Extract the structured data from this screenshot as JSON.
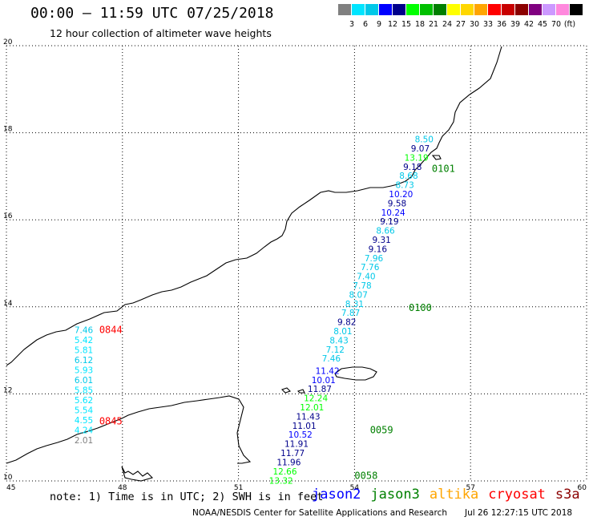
{
  "header": {
    "title": "00:00 – 11:59 UTC 07/25/2018",
    "subtitle": "12 hour collection of altimeter wave heights"
  },
  "color_scale": {
    "colors": [
      "#808080",
      "#00e5ff",
      "#00c8e8",
      "#0000ff",
      "#00008b",
      "#00ff00",
      "#00c000",
      "#007f00",
      "#ffff00",
      "#ffd700",
      "#ffa500",
      "#ff0000",
      "#c80000",
      "#8b0000",
      "#800080",
      "#cc99ff",
      "#ff88dd",
      "#000000"
    ],
    "labels": [
      "3",
      "6",
      "9",
      "12",
      "15",
      "18",
      "21",
      "24",
      "27",
      "30",
      "33",
      "36",
      "39",
      "42",
      "45",
      "70",
      "(ft)"
    ]
  },
  "map": {
    "x_ticks": [
      "45",
      "48",
      "51",
      "54",
      "57",
      "60"
    ],
    "y_ticks": [
      "20",
      "18",
      "16",
      "14",
      "12",
      "10"
    ]
  },
  "chart_data": {
    "type": "scatter",
    "x_label": "",
    "y_label": "",
    "xlim": [
      45,
      60
    ],
    "ylim": [
      10,
      20
    ],
    "x_ticks": [
      45,
      48,
      51,
      54,
      57,
      60
    ],
    "y_ticks": [
      10,
      12,
      14,
      16,
      18,
      20
    ],
    "grid": true,
    "passes": [
      {
        "label": "0844",
        "label_color": "#ff0000",
        "anchor": [
          47.4,
          13.4
        ]
      },
      {
        "label": "0845",
        "label_color": "#ff0000",
        "anchor": [
          47.4,
          11.3
        ]
      },
      {
        "label": "0101",
        "label_color": "#008000",
        "anchor": [
          56.0,
          17.1
        ]
      },
      {
        "label": "0100",
        "label_color": "#008000",
        "anchor": [
          55.4,
          13.9
        ]
      },
      {
        "label": "0059",
        "label_color": "#008000",
        "anchor": [
          54.4,
          11.1
        ]
      },
      {
        "label": "0058",
        "label_color": "#008000",
        "anchor": [
          54.0,
          10.05
        ]
      }
    ],
    "points": [
      {
        "x": 47.0,
        "y": 13.4,
        "v": "7.46",
        "c": "#00c8e8"
      },
      {
        "x": 47.0,
        "y": 13.17,
        "v": "5.42",
        "c": "#00e5ff"
      },
      {
        "x": 47.0,
        "y": 12.94,
        "v": "5.81",
        "c": "#00e5ff"
      },
      {
        "x": 47.0,
        "y": 12.71,
        "v": "6.12",
        "c": "#00c8e8"
      },
      {
        "x": 47.0,
        "y": 12.48,
        "v": "5.93",
        "c": "#00e5ff"
      },
      {
        "x": 47.0,
        "y": 12.25,
        "v": "6.01",
        "c": "#00c8e8"
      },
      {
        "x": 47.0,
        "y": 12.02,
        "v": "5.85",
        "c": "#00e5ff"
      },
      {
        "x": 47.0,
        "y": 11.79,
        "v": "5.62",
        "c": "#00e5ff"
      },
      {
        "x": 47.0,
        "y": 11.56,
        "v": "5.54",
        "c": "#00e5ff"
      },
      {
        "x": 47.0,
        "y": 11.33,
        "v": "4.55",
        "c": "#00e5ff"
      },
      {
        "x": 47.0,
        "y": 11.1,
        "v": "4.24",
        "c": "#00e5ff"
      },
      {
        "x": 47.0,
        "y": 10.87,
        "v": "2.01",
        "c": "#808080"
      },
      {
        "x": 55.8,
        "y": 17.78,
        "v": "8.50",
        "c": "#00c8e8"
      },
      {
        "x": 55.7,
        "y": 17.57,
        "v": "9.07",
        "c": "#00008b"
      },
      {
        "x": 55.6,
        "y": 17.36,
        "v": "13.19",
        "c": "#00ff00"
      },
      {
        "x": 55.5,
        "y": 17.15,
        "v": "9.18",
        "c": "#00008b"
      },
      {
        "x": 55.4,
        "y": 16.94,
        "v": "8.68",
        "c": "#00c8e8"
      },
      {
        "x": 55.3,
        "y": 16.73,
        "v": "8.73",
        "c": "#00c8e8"
      },
      {
        "x": 55.2,
        "y": 16.52,
        "v": "10.20",
        "c": "#0000ff"
      },
      {
        "x": 55.1,
        "y": 16.31,
        "v": "9.58",
        "c": "#00008b"
      },
      {
        "x": 55.0,
        "y": 16.1,
        "v": "10.24",
        "c": "#0000ff"
      },
      {
        "x": 54.9,
        "y": 15.89,
        "v": "9.19",
        "c": "#00008b"
      },
      {
        "x": 54.8,
        "y": 15.68,
        "v": "8.66",
        "c": "#00c8e8"
      },
      {
        "x": 54.7,
        "y": 15.47,
        "v": "9.31",
        "c": "#00008b"
      },
      {
        "x": 54.6,
        "y": 15.26,
        "v": "9.16",
        "c": "#00008b"
      },
      {
        "x": 54.5,
        "y": 15.05,
        "v": "7.96",
        "c": "#00c8e8"
      },
      {
        "x": 54.4,
        "y": 14.84,
        "v": "7.76",
        "c": "#00c8e8"
      },
      {
        "x": 54.3,
        "y": 14.63,
        "v": "7.40",
        "c": "#00c8e8"
      },
      {
        "x": 54.2,
        "y": 14.42,
        "v": "7.78",
        "c": "#00c8e8"
      },
      {
        "x": 54.1,
        "y": 14.21,
        "v": "8.07",
        "c": "#00c8e8"
      },
      {
        "x": 54.0,
        "y": 14.0,
        "v": "8.31",
        "c": "#00c8e8"
      },
      {
        "x": 53.9,
        "y": 13.79,
        "v": "7.87",
        "c": "#00c8e8"
      },
      {
        "x": 53.8,
        "y": 13.58,
        "v": "9.82",
        "c": "#00008b"
      },
      {
        "x": 53.7,
        "y": 13.37,
        "v": "8.01",
        "c": "#00c8e8"
      },
      {
        "x": 53.6,
        "y": 13.16,
        "v": "8.43",
        "c": "#00c8e8"
      },
      {
        "x": 53.5,
        "y": 12.95,
        "v": "7.12",
        "c": "#00c8e8"
      },
      {
        "x": 53.4,
        "y": 12.74,
        "v": "7.46",
        "c": "#00c8e8"
      },
      {
        "x": 53.3,
        "y": 12.46,
        "v": "11.42",
        "c": "#0000ff"
      },
      {
        "x": 53.2,
        "y": 12.25,
        "v": "10.01",
        "c": "#0000ff"
      },
      {
        "x": 53.1,
        "y": 12.04,
        "v": "11.87",
        "c": "#00008b"
      },
      {
        "x": 53.0,
        "y": 11.83,
        "v": "12.24",
        "c": "#00ff00"
      },
      {
        "x": 52.9,
        "y": 11.62,
        "v": "12.01",
        "c": "#00ff00"
      },
      {
        "x": 52.8,
        "y": 11.41,
        "v": "11.43",
        "c": "#00008b"
      },
      {
        "x": 52.7,
        "y": 11.2,
        "v": "11.01",
        "c": "#00008b"
      },
      {
        "x": 52.6,
        "y": 10.99,
        "v": "10.52",
        "c": "#0000ff"
      },
      {
        "x": 52.5,
        "y": 10.78,
        "v": "11.91",
        "c": "#00008b"
      },
      {
        "x": 52.4,
        "y": 10.57,
        "v": "11.77",
        "c": "#00008b"
      },
      {
        "x": 52.3,
        "y": 10.36,
        "v": "11.96",
        "c": "#00008b"
      },
      {
        "x": 52.2,
        "y": 10.15,
        "v": "12.66",
        "c": "#00ff00"
      },
      {
        "x": 52.1,
        "y": 9.94,
        "v": "13.32",
        "c": "#00ff00"
      }
    ]
  },
  "note": "note: 1) Time is in UTC; 2) SWH is in feet",
  "satellites": [
    {
      "name": "jason2",
      "color": "#0000ff"
    },
    {
      "name": "jason3",
      "color": "#008000"
    },
    {
      "name": "altika",
      "color": "#ffa500"
    },
    {
      "name": "cryosat",
      "color": "#ff0000"
    },
    {
      "name": "s3a",
      "color": "#8b0000"
    }
  ],
  "footer": {
    "credit": "NOAA/NESDIS Center for Satellite Applications and Research",
    "timestamp": "Jul 26 12:27:15 UTC 2018"
  }
}
